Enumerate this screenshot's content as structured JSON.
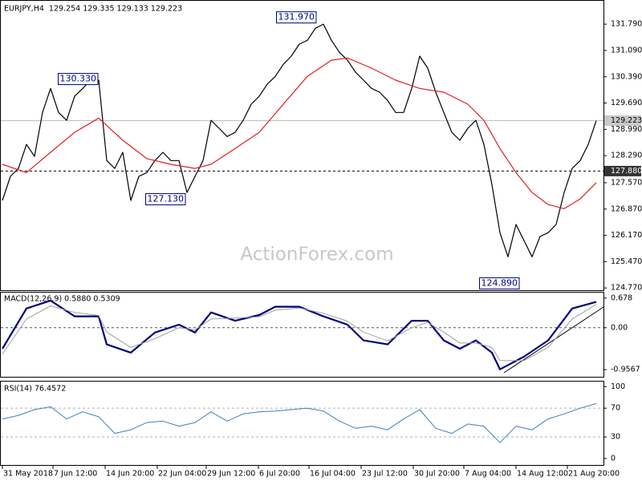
{
  "chart_data": [
    {
      "type": "line",
      "title": "EURJPY,H4  129.254 129.335 129.133 129.223",
      "watermark": "ActionForex.com",
      "xlim": [
        0,
        74
      ],
      "ylim": [
        124.71,
        132.39
      ],
      "yticks": [
        {
          "value": 131.79,
          "label": "131.790"
        },
        {
          "value": 131.09,
          "label": "131.090"
        },
        {
          "value": 130.39,
          "label": "130.390"
        },
        {
          "value": 129.69,
          "label": "129.690"
        },
        {
          "value": 128.99,
          "label": "128.990"
        },
        {
          "value": 128.29,
          "label": "128.290"
        },
        {
          "value": 127.57,
          "label": "127.570"
        },
        {
          "value": 126.87,
          "label": "126.870"
        },
        {
          "value": 126.17,
          "label": "126.170"
        },
        {
          "value": 125.47,
          "label": "125.470"
        },
        {
          "value": 124.77,
          "label": "124.770"
        }
      ],
      "marked_levels": [
        {
          "value": 129.223,
          "label": "129.223",
          "line": "solid",
          "line_color": "#c0c0c0",
          "box_color": "#c8c8c8",
          "text_color": "#000000"
        },
        {
          "value": 127.88,
          "label": "127.880",
          "line": "dashed",
          "line_color": "#000000",
          "box_color": "#333333",
          "text_color": "#ffffff"
        }
      ],
      "series": [
        {
          "color": "#000000",
          "width": 1.2,
          "x": [
            0,
            1,
            2,
            3,
            4,
            5,
            6,
            7,
            8,
            9,
            10,
            11,
            12,
            13,
            14,
            15,
            16,
            17,
            18,
            19,
            20,
            21,
            22,
            23,
            24,
            25,
            26,
            27,
            28,
            29,
            30,
            31,
            32,
            33,
            34,
            35,
            36,
            37,
            38,
            39,
            40,
            41,
            42,
            43,
            44,
            45,
            46,
            47,
            48,
            49,
            50,
            51,
            52,
            53,
            54,
            55,
            56,
            57,
            58,
            59,
            60,
            61,
            62,
            63,
            64,
            65,
            66,
            67,
            68,
            69,
            70,
            71,
            72,
            73,
            74
          ],
          "values": [
            127.1,
            127.74,
            127.95,
            128.59,
            128.27,
            129.44,
            130.08,
            129.44,
            129.23,
            129.87,
            130.08,
            130.3,
            130.3,
            128.16,
            127.95,
            128.38,
            127.1,
            127.74,
            127.84,
            128.16,
            128.38,
            128.16,
            128.16,
            127.31,
            127.74,
            128.16,
            129.23,
            129.02,
            128.8,
            128.91,
            129.23,
            129.66,
            129.87,
            130.19,
            130.4,
            130.72,
            130.94,
            131.26,
            131.36,
            131.68,
            131.79,
            131.36,
            131.04,
            130.83,
            130.51,
            130.3,
            130.08,
            129.98,
            129.76,
            129.44,
            129.44,
            130.08,
            130.94,
            130.62,
            129.98,
            129.44,
            128.91,
            128.7,
            129.02,
            129.23,
            128.59,
            127.52,
            126.24,
            125.6,
            126.46,
            126.03,
            125.6,
            126.14,
            126.24,
            126.46,
            127.31,
            127.95,
            128.16,
            128.59,
            129.22
          ]
        },
        {
          "color": "#e02020",
          "width": 1.2,
          "x": [
            0,
            3,
            6,
            9,
            12,
            15,
            18,
            21,
            24,
            26,
            29,
            32,
            35,
            38,
            41,
            43,
            46,
            49,
            52,
            55,
            58,
            60,
            62,
            64,
            66,
            68,
            70,
            72,
            74
          ],
          "values": [
            128.06,
            127.84,
            128.38,
            128.91,
            129.29,
            128.7,
            128.21,
            128.06,
            127.95,
            128.06,
            128.48,
            128.91,
            129.66,
            130.4,
            130.83,
            130.89,
            130.62,
            130.3,
            130.08,
            129.98,
            129.66,
            129.23,
            128.48,
            127.84,
            127.31,
            126.99,
            126.88,
            127.14,
            127.57
          ]
        }
      ],
      "annotations": [
        {
          "x": 12,
          "value": 130.33,
          "label": "130.330"
        },
        {
          "x": 39.2,
          "value": 131.97,
          "label": "131.970"
        },
        {
          "x": 22.9,
          "value": 127.13,
          "label": "127.130"
        },
        {
          "x": 64.5,
          "value": 124.89,
          "label": "124.890"
        }
      ]
    },
    {
      "type": "line",
      "title": "MACD(12,26,9) 0.5880 0.5309",
      "xlim": [
        0,
        74
      ],
      "ylim": [
        -1.12,
        0.82
      ],
      "yticks": [
        0.678,
        {
          "value": 0,
          "label": "0.00"
        },
        -0.9567
      ],
      "levels": [
        0
      ],
      "level_color": "#555555",
      "series": [
        {
          "color": "#00007f",
          "width": 2.2,
          "x": [
            0,
            3,
            6,
            9,
            12,
            13,
            16,
            19,
            22,
            24,
            26,
            29,
            32,
            34,
            37,
            40,
            43,
            45,
            48,
            51,
            53,
            55,
            57,
            59,
            61,
            62,
            65,
            68,
            71,
            74
          ],
          "values": [
            -0.48,
            0.44,
            0.62,
            0.26,
            0.26,
            -0.38,
            -0.57,
            -0.11,
            0.07,
            -0.11,
            0.35,
            0.16,
            0.29,
            0.48,
            0.48,
            0.26,
            0.07,
            -0.29,
            -0.38,
            0.16,
            0.16,
            -0.29,
            -0.48,
            -0.29,
            -0.57,
            -0.95,
            -0.66,
            -0.29,
            0.44,
            0.59
          ]
        },
        {
          "color": "#a0a0a0",
          "width": 1,
          "x": [
            0,
            3,
            6,
            9,
            12,
            13,
            16,
            19,
            22,
            24,
            26,
            29,
            32,
            34,
            37,
            40,
            43,
            45,
            48,
            51,
            53,
            55,
            57,
            59,
            61,
            62,
            65,
            68,
            71,
            74
          ],
          "values": [
            -0.6,
            0.2,
            0.5,
            0.35,
            0.28,
            -0.1,
            -0.45,
            -0.25,
            0.0,
            -0.05,
            0.2,
            0.22,
            0.25,
            0.4,
            0.45,
            0.33,
            0.15,
            -0.1,
            -0.3,
            0.0,
            0.12,
            -0.1,
            -0.35,
            -0.35,
            -0.45,
            -0.75,
            -0.75,
            -0.45,
            0.2,
            0.53
          ]
        }
      ]
    },
    {
      "type": "line",
      "title": "RSI(14) 76.4572",
      "xlim": [
        0,
        74
      ],
      "ylim": [
        -9,
        107
      ],
      "yticks": [
        100,
        70,
        30,
        0
      ],
      "levels": [
        70,
        30
      ],
      "level_color": "#b0b0b0",
      "series": [
        {
          "color": "#3d7fc4",
          "width": 1,
          "x": [
            0,
            2,
            4,
            6,
            8,
            10,
            12,
            14,
            16,
            18,
            20,
            22,
            24,
            26,
            28,
            30,
            32,
            34,
            36,
            38,
            40,
            42,
            44,
            46,
            48,
            50,
            52,
            54,
            56,
            58,
            60,
            62,
            64,
            66,
            68,
            70,
            72,
            74
          ],
          "values": [
            55,
            60,
            68,
            72,
            55,
            65,
            58,
            35,
            40,
            50,
            52,
            45,
            50,
            65,
            52,
            62,
            65,
            66,
            68,
            70,
            66,
            52,
            42,
            45,
            40,
            55,
            68,
            42,
            35,
            48,
            45,
            22,
            45,
            40,
            55,
            62,
            70,
            76.46
          ]
        }
      ],
      "xticks": [
        {
          "value": 0,
          "label": "31 May 2018"
        },
        {
          "value": 6.3,
          "label": "7 Jun 12:00"
        },
        {
          "value": 12.8,
          "label": "14 Jun 20:00"
        },
        {
          "value": 19.3,
          "label": "22 Jun 04:00"
        },
        {
          "value": 25.4,
          "label": "29 Jun 12:00"
        },
        {
          "value": 31.9,
          "label": "6 Jul 20:00"
        },
        {
          "value": 38.2,
          "label": "16 Jul 04:00"
        },
        {
          "value": 44.7,
          "label": "23 Jul 12:00"
        },
        {
          "value": 51.2,
          "label": "30 Jul 20:00"
        },
        {
          "value": 57.5,
          "label": "7 Aug 04:00"
        },
        {
          "value": 64,
          "label": "14 Aug 12:00"
        },
        {
          "value": 70.4,
          "label": "21 Aug 20:00"
        }
      ]
    }
  ]
}
